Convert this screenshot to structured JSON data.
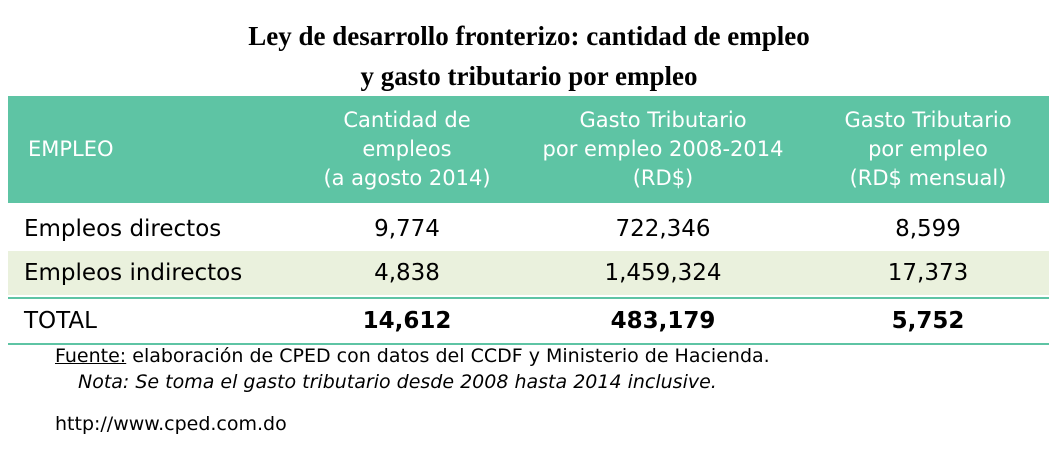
{
  "title": {
    "line1": "Ley de desarrollo fronterizo: cantidad de empleo",
    "line2": "y gasto tributario por empleo"
  },
  "table": {
    "header_color": "#5ec4a4",
    "alt_row_color": "#eaf1dd",
    "headers": [
      [
        "EMPLEO"
      ],
      [
        "Cantidad de",
        "empleos",
        "(a agosto 2014)"
      ],
      [
        "Gasto Tributario",
        "por empleo 2008-2014",
        "(RD$)"
      ],
      [
        "Gasto Tributario",
        "por empleo",
        "(RD$ mensual)"
      ]
    ],
    "rows": [
      [
        "Empleos directos",
        "9,774",
        "722,346",
        "8,599"
      ],
      [
        "Empleos indirectos",
        "4,838",
        "1,459,324",
        "17,373"
      ]
    ],
    "total": [
      "TOTAL",
      "14,612",
      "483,179",
      "5,752"
    ]
  },
  "footer": {
    "source_label": "Fuente:",
    "source_text": " elaboración de CPED con datos del CCDF y Ministerio de Hacienda.",
    "note": "Nota: Se toma el gasto tributario desde 2008 hasta 2014 inclusive.",
    "url": "http://www.cped.com.do"
  }
}
